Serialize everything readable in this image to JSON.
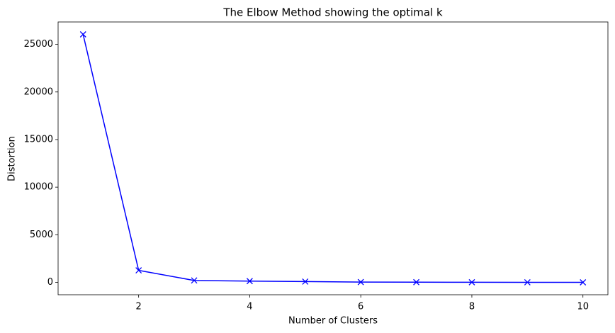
{
  "chart_data": {
    "type": "line",
    "title": "The Elbow Method showing the optimal k",
    "x_label": "Number of Clusters",
    "y_label": "Distortion",
    "x": [
      1,
      2,
      3,
      4,
      5,
      6,
      7,
      8,
      9,
      10
    ],
    "series": [
      {
        "color": "#0000ff",
        "marker": "x",
        "values": [
          26050,
          1260,
          200,
          130,
          80,
          30,
          20,
          10,
          5,
          0
        ]
      }
    ],
    "xlim": [
      0.55,
      10.45
    ],
    "xticks": [
      2,
      4,
      6,
      8,
      10
    ],
    "ylim": [
      -1302,
      27352
    ],
    "yticks": [
      0,
      5000,
      10000,
      15000,
      20000,
      25000
    ],
    "grid": false
  }
}
